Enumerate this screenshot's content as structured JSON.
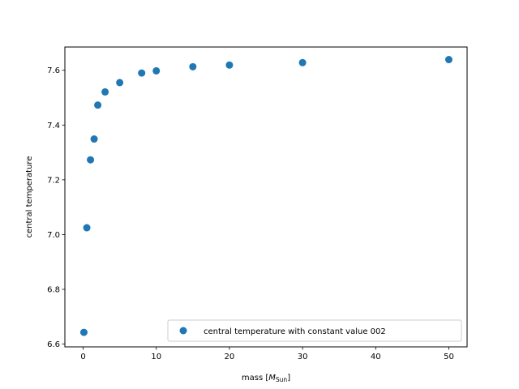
{
  "chart_data": {
    "type": "scatter",
    "title": "",
    "xlabel_prefix": "mass [",
    "xlabel_symbol": "M",
    "xlabel_subscript": "Sun",
    "xlabel_suffix": "]",
    "ylabel": "central temperature",
    "xlim": [
      -2.5,
      52.5
    ],
    "ylim": [
      6.59,
      7.685
    ],
    "xticks": [
      0,
      10,
      20,
      30,
      40,
      50
    ],
    "xtick_labels": [
      "0",
      "10",
      "20",
      "30",
      "40",
      "50"
    ],
    "yticks": [
      6.6,
      6.8,
      7.0,
      7.2,
      7.4,
      7.6
    ],
    "ytick_labels": [
      "6.6",
      "6.8",
      "7.0",
      "7.2",
      "7.4",
      "7.6"
    ],
    "grid": false,
    "legend_position": "lower-right",
    "series": [
      {
        "name": "central temperature with constant value 002",
        "color": "#1f77b4",
        "x": [
          0.1,
          0.5,
          1,
          1.5,
          2,
          3,
          5,
          8,
          10,
          15,
          20,
          30,
          50
        ],
        "y": [
          6.643,
          7.025,
          7.273,
          7.349,
          7.473,
          7.521,
          7.555,
          7.59,
          7.598,
          7.613,
          7.619,
          7.628,
          7.639
        ]
      }
    ]
  }
}
